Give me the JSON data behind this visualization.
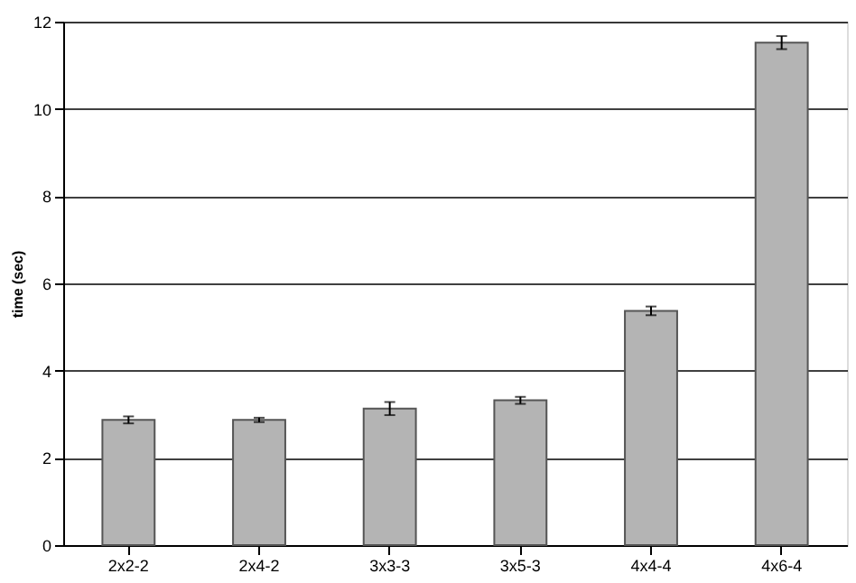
{
  "chart_data": {
    "type": "bar",
    "ylabel": "time (sec)",
    "categories": [
      "2x2-2",
      "2x4-2",
      "3x3-3",
      "3x5-3",
      "4x4-4",
      "4x6-4"
    ],
    "values": [
      2.87,
      2.87,
      3.13,
      3.32,
      5.37,
      11.52
    ],
    "errors": [
      0.08,
      0.05,
      0.15,
      0.08,
      0.1,
      0.15
    ],
    "color": "#b4b4b4",
    "ylim": [
      0,
      12
    ],
    "yticks": [
      0,
      2,
      4,
      6,
      8,
      10,
      12
    ],
    "grid": "y"
  }
}
